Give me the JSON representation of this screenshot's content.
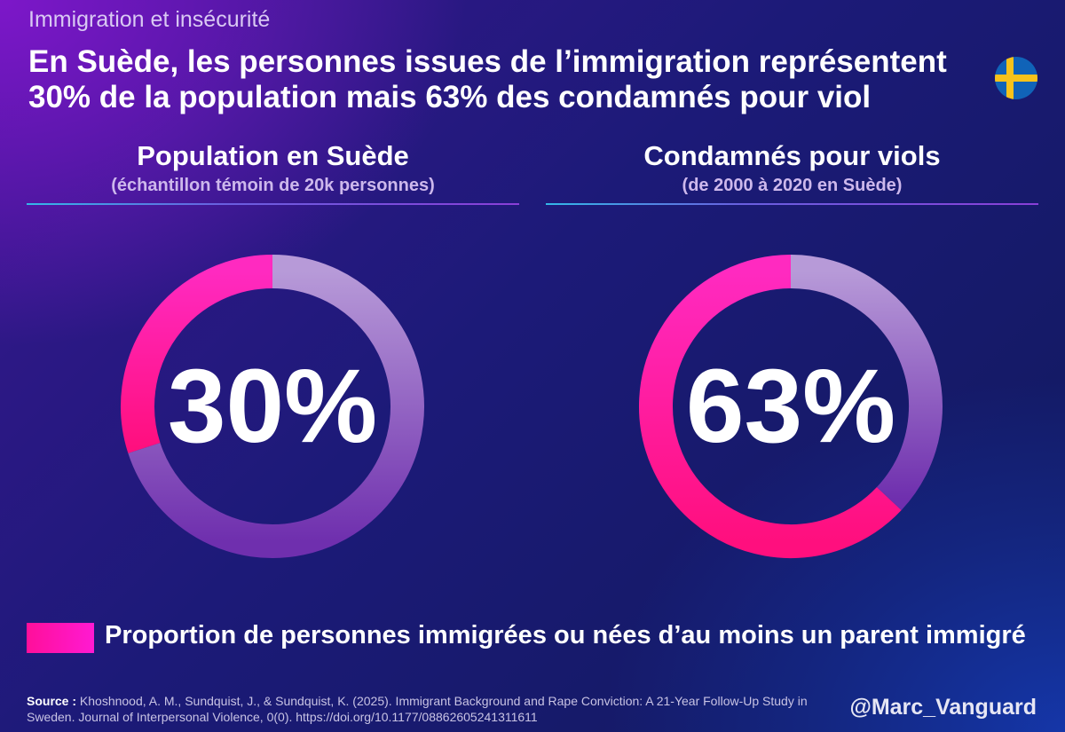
{
  "header": {
    "kicker": "Immigration et insécurité",
    "title": "En Suède, les personnes issues de l’immigration représentent 30% de la population mais 63% des condamnés pour viol"
  },
  "colors": {
    "highlight": "#ff1aa6",
    "remainder": "#8a5bc4",
    "background": "#1c1a78"
  },
  "icons": {
    "flag": "sweden-flag-icon"
  },
  "chart_data": [
    {
      "type": "pie",
      "title": "Population en Suède",
      "subtitle": "(échantillon témoin de 20k personnes)",
      "center_label": "30%",
      "slices": [
        {
          "label": "Proportion de personnes immigrées ou nées d’au moins un parent immigré",
          "value": 30
        },
        {
          "label": "",
          "value": 70
        }
      ]
    },
    {
      "type": "pie",
      "title": "Condamnés pour viols",
      "subtitle": "(de 2000 à 2020 en Suède)",
      "center_label": "63%",
      "slices": [
        {
          "label": "Proportion de personnes immigrées ou nées d’au moins un parent immigré",
          "value": 63
        },
        {
          "label": "",
          "value": 37
        }
      ]
    }
  ],
  "legend": {
    "label": "Proportion de personnes immigrées ou nées d’au moins un parent immigré"
  },
  "footer": {
    "source_label": "Source :",
    "source_text": "Khoshnood, A. M., Sundquist, J., & Sundquist, K. (2025). Immigrant Background and Rape Conviction: A 21-Year Follow-Up Study in Sweden. Journal of Interpersonal Violence, 0(0). https://doi.org/10.1177/08862605241311611",
    "handle": "@Marc_Vanguard"
  }
}
